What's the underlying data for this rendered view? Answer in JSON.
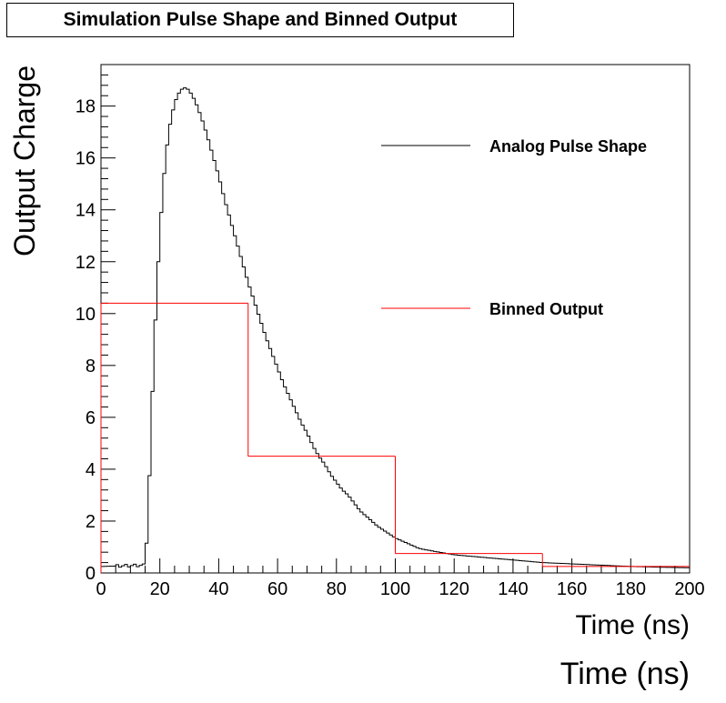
{
  "chart_data": {
    "type": "line",
    "title": "Simulation Pulse Shape and Binned Output",
    "xlabel": "Time (ns)",
    "xlabel_secondary": "Time (ns)",
    "ylabel": "Output Charge",
    "xlim": [
      0,
      200
    ],
    "ylim": [
      0,
      19.6
    ],
    "grid": false,
    "legend_position": "right",
    "x_ticks": [
      0,
      20,
      40,
      60,
      80,
      100,
      120,
      140,
      160,
      180,
      200
    ],
    "y_ticks": [
      0,
      2,
      4,
      6,
      8,
      10,
      12,
      14,
      16,
      18
    ],
    "series": [
      {
        "name": "Analog Pulse Shape",
        "color": "#000000",
        "style": "step",
        "bin_width": 1,
        "x": [
          0,
          15,
          16,
          17,
          18,
          19,
          20,
          21,
          22,
          23,
          24,
          25,
          26,
          27,
          28,
          29,
          30,
          32,
          34,
          36,
          38,
          40,
          42,
          44,
          46,
          48,
          50,
          52,
          54,
          56,
          58,
          60,
          62,
          64,
          66,
          68,
          70,
          72,
          74,
          76,
          78,
          80,
          82,
          84,
          86,
          88,
          90,
          92,
          94,
          96,
          98,
          100,
          102,
          104,
          106,
          108,
          110,
          115,
          120,
          125,
          130,
          135,
          140,
          145,
          150,
          160,
          170,
          180,
          190,
          200
        ],
        "y": [
          0.25,
          0.3,
          2.0,
          5.5,
          8.5,
          11.0,
          13.0,
          14.8,
          16.0,
          17.0,
          17.6,
          18.1,
          18.4,
          18.6,
          18.7,
          18.7,
          18.6,
          18.2,
          17.6,
          16.9,
          16.1,
          15.3,
          14.4,
          13.6,
          12.8,
          12.0,
          11.2,
          10.5,
          9.8,
          9.1,
          8.5,
          7.9,
          7.3,
          6.8,
          6.3,
          5.8,
          5.4,
          4.9,
          4.5,
          4.2,
          3.8,
          3.5,
          3.2,
          3.0,
          2.7,
          2.4,
          2.2,
          2.0,
          1.8,
          1.65,
          1.5,
          1.35,
          1.25,
          1.15,
          1.05,
          0.95,
          0.9,
          0.8,
          0.7,
          0.65,
          0.6,
          0.55,
          0.5,
          0.45,
          0.4,
          0.35,
          0.3,
          0.25,
          0.22,
          0.2
        ]
      },
      {
        "name": "Binned Output",
        "color": "#ff0000",
        "style": "step",
        "bin_edges": [
          0,
          50,
          100,
          150,
          200
        ],
        "values": [
          10.4,
          4.5,
          0.75,
          0.25
        ]
      }
    ]
  }
}
